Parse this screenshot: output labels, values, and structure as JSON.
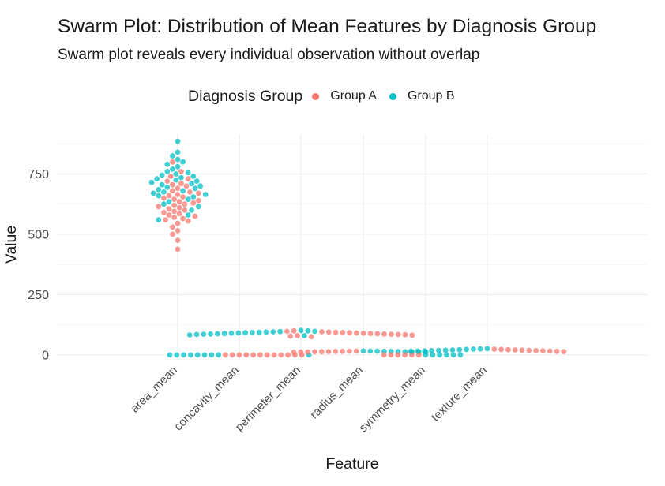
{
  "chart_data": {
    "type": "scatter",
    "subtype": "swarm",
    "title": "Swarm Plot: Distribution of Mean Features by Diagnosis Group",
    "subtitle": "Swarm plot reveals every individual observation without overlap",
    "xlabel": "Feature",
    "ylabel": "Value",
    "categories": [
      "area_mean",
      "concavity_mean",
      "perimeter_mean",
      "radius_mean",
      "symmetry_mean",
      "texture_mean"
    ],
    "ylim": [
      -20,
      915
    ],
    "yticks": [
      0,
      250,
      500,
      750
    ],
    "grid": true,
    "legend": {
      "title": "Diagnosis Group",
      "position": "top",
      "entries": [
        "Group A",
        "Group B"
      ]
    },
    "series": [
      {
        "name": "Group A",
        "color": "#F8766D",
        "points": {
          "area_mean": [
            438,
            475,
            500,
            515,
            530,
            545,
            555,
            560,
            565,
            570,
            575,
            580,
            585,
            590,
            595,
            600,
            605,
            610,
            615,
            620,
            625,
            630,
            635,
            640,
            645,
            650,
            655,
            660,
            665,
            670,
            675,
            680,
            690,
            700,
            705,
            710,
            720,
            730,
            740,
            760,
            800
          ],
          "concavity_mean": [
            0.05,
            0.06,
            0.07,
            0.08,
            0.09,
            0.1,
            0.11,
            0.12,
            0.13,
            0.14,
            0.15,
            0.16
          ],
          "perimeter_mean": [
            75,
            78,
            80,
            82,
            84,
            85,
            86,
            87,
            88,
            89,
            90,
            91,
            92,
            93,
            94,
            95,
            96,
            98,
            100
          ],
          "radius_mean": [
            11.5,
            12,
            12.5,
            13,
            13.5,
            14,
            14.5,
            15,
            15.5,
            16
          ],
          "symmetry_mean": [
            0.16,
            0.17,
            0.18,
            0.19,
            0.2,
            0.21
          ],
          "texture_mean": [
            14,
            15,
            16,
            17,
            18,
            19,
            20,
            21,
            22,
            23,
            24
          ]
        }
      },
      {
        "name": "Group B",
        "color": "#00BFC4",
        "points": {
          "area_mean": [
            560,
            580,
            600,
            615,
            625,
            635,
            645,
            655,
            660,
            665,
            670,
            675,
            680,
            685,
            690,
            695,
            700,
            705,
            710,
            715,
            720,
            725,
            730,
            735,
            740,
            745,
            750,
            755,
            760,
            770,
            780,
            790,
            800,
            810,
            825,
            840,
            885
          ],
          "concavity_mean": [
            0.04,
            0.05,
            0.06,
            0.07,
            0.08,
            0.09,
            0.1,
            0.11,
            0.12
          ],
          "perimeter_mean": [
            80,
            83,
            85,
            86,
            87,
            88,
            89,
            90,
            91,
            92,
            93,
            94,
            95,
            96,
            97,
            98,
            100,
            102
          ],
          "radius_mean": [
            12,
            12.5,
            13,
            13.5,
            14,
            14.5,
            15,
            15.5,
            16,
            16.5
          ],
          "symmetry_mean": [
            0.17,
            0.18,
            0.19,
            0.2,
            0.21,
            0.22
          ],
          "texture_mean": [
            15,
            16,
            17,
            18,
            19,
            20,
            21,
            22,
            23,
            24,
            25,
            26
          ]
        }
      }
    ]
  }
}
